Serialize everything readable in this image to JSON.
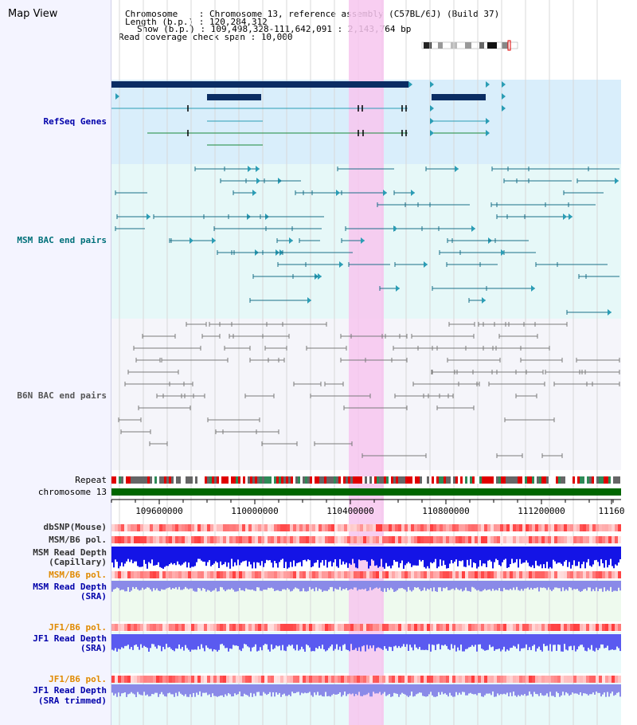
{
  "app": {
    "title": "Map View"
  },
  "info": {
    "chromosome": "Chromosome    : Chromosome 13, reference assembly (C57BL/6J) (Build 37)",
    "length": "Length (b.p.) : 120,284,312",
    "show": "Show (b.p.) : 109,498,328-111,642,091 : 2,143,764 bp",
    "span": "Read coverage check span : 10,000"
  },
  "tracks": {
    "refseq": "RefSeq Genes",
    "msm_bac": "MSM BAC end pairs",
    "b6n_bac": "B6N BAC end pairs",
    "repeat": "Repeat",
    "chromosome": "chromosome 13",
    "dbsnp": "dbSNP(Mouse)",
    "msm_b6_pol": "MSM/B6 pol.",
    "msm_depth_cap_1": "MSM Read Depth",
    "msm_depth_cap_2": "(Capillary)",
    "msm_b6_pol_2": "MSM/B6 pol.",
    "msm_depth_sra_1": "MSM Read Depth",
    "msm_depth_sra_2": "(SRA)",
    "jf1_b6_pol": "JF1/B6 pol.",
    "jf1_depth_sra_1": "JF1 Read Depth",
    "jf1_depth_sra_2": "(SRA)",
    "jf1_b6_pol_2": "JF1/B6 pol.",
    "jf1_depth_trim_1": "JF1 Read Depth",
    "jf1_depth_trim_2": "(SRA trimmed)"
  },
  "axis": {
    "ticks": [
      "109600000",
      "110000000",
      "110400000",
      "110800000",
      "111200000",
      "11160"
    ]
  },
  "colors": {
    "highlight": "#f7c6ee",
    "refseq_bg": "#d9eefb",
    "msm_bg": "#e6f8f8",
    "b6n_bg": "#f5f5fa",
    "gene_dark": "#0b2d63",
    "gene_teal": "#2a9db5",
    "gene_green": "#1c8a3a",
    "msm_line": "#1a6f87",
    "b6n_line": "#7a7a7a",
    "chromosome": "#006600",
    "orange_label": "#e08a00",
    "blue_label": "#0000aa",
    "teal_label": "#00707a"
  }
}
